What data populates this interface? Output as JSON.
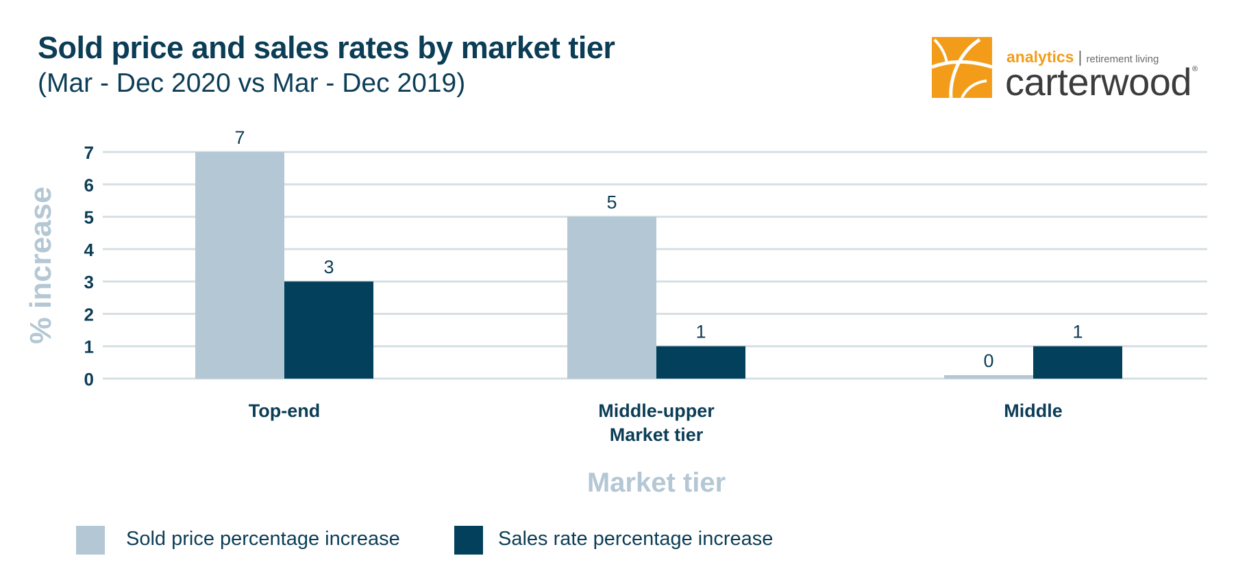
{
  "header": {
    "title": "Sold price and sales rates by market tier",
    "subtitle": "(Mar - Dec 2020 vs Mar - Dec 2019)"
  },
  "logo": {
    "icon": "carterwood-logo-mark",
    "tagline_accent": "analytics",
    "separator": "|",
    "tagline": "retirement living",
    "brand": "carterwood",
    "registered": "®"
  },
  "colors": {
    "sold_price": "#b3c7d4",
    "sales_rate": "#02405b",
    "text": "#0b3d56",
    "axis_label": "#b3c7d4",
    "grid": "#d4dfe5",
    "brand_orange": "#f39c1a"
  },
  "chart_data": {
    "type": "bar",
    "categories": [
      "Top-end",
      "Middle-upper",
      "Middle"
    ],
    "series": [
      {
        "name": "Sold price percentage increase",
        "values": [
          7,
          5,
          0
        ],
        "labels": [
          "7",
          "5",
          "0"
        ]
      },
      {
        "name": "Sales rate percentage increase",
        "values": [
          3,
          1,
          1
        ],
        "labels": [
          "3",
          "1",
          "1"
        ]
      }
    ],
    "ylim": [
      0,
      7
    ],
    "yticks": [
      "0",
      "1",
      "2",
      "3",
      "4",
      "5",
      "6",
      "7"
    ],
    "ylabel": "% increase",
    "xlabel": "Market tier",
    "category_sublabel": "Market tier",
    "grid": true,
    "legend_position": "bottom-left"
  }
}
